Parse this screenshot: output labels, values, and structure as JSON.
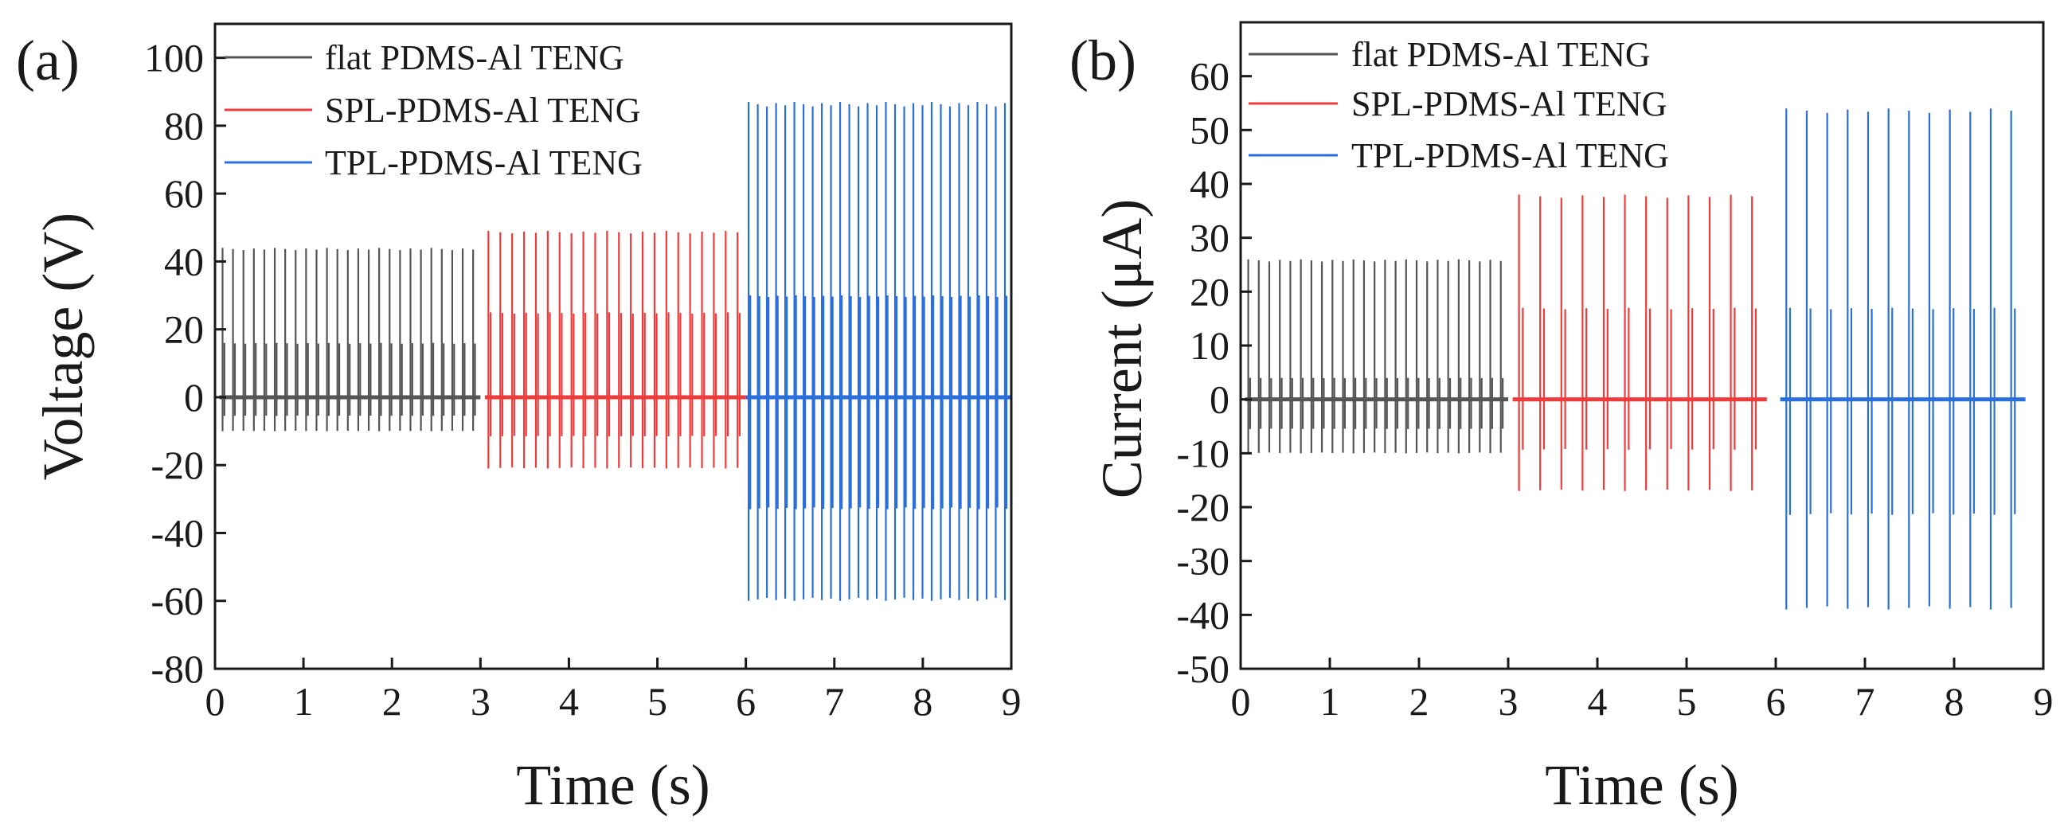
{
  "chart_data": [
    {
      "panel": "(a)",
      "type": "line",
      "xlabel": "Time (s)",
      "ylabel": "Voltage (V)",
      "xlim": [
        0,
        9
      ],
      "ylim": [
        -80,
        110
      ],
      "xticks": [
        0,
        1,
        2,
        3,
        4,
        5,
        6,
        7,
        8,
        9
      ],
      "yticks": [
        -80,
        -60,
        -40,
        -20,
        0,
        20,
        40,
        60,
        80,
        100
      ],
      "legend_position": "top-left",
      "series": [
        {
          "name": "flat PDMS-Al TENG",
          "color": "#555555",
          "t_start": 0.05,
          "t_end": 3.0,
          "pulses": 25,
          "peak_max": 44,
          "peak_mid": 16,
          "peak_min": -10
        },
        {
          "name": "SPL-PDMS-Al TENG",
          "color": "#ef3b3b",
          "t_start": 3.05,
          "t_end": 6.0,
          "pulses": 22,
          "peak_max": 49,
          "peak_mid": 25,
          "peak_min": -21
        },
        {
          "name": "TPL-PDMS-Al TENG",
          "color": "#2a6fdb",
          "t_start": 6.0,
          "t_end": 9.0,
          "pulses": 29,
          "peak_max": 87,
          "peak_mid": 30,
          "peak_min": -60
        }
      ]
    },
    {
      "panel": "(b)",
      "type": "line",
      "xlabel": "Time (s)",
      "ylabel": "Current (μA)",
      "xlim": [
        0,
        9
      ],
      "ylim": [
        -50,
        70
      ],
      "xticks": [
        0,
        1,
        2,
        3,
        4,
        5,
        6,
        7,
        8,
        9
      ],
      "yticks": [
        -50,
        -40,
        -30,
        -20,
        -10,
        0,
        10,
        20,
        30,
        40,
        50,
        60
      ],
      "legend_position": "top-left",
      "series": [
        {
          "name": "flat PDMS-Al TENG",
          "color": "#555555",
          "t_start": 0.05,
          "t_end": 3.0,
          "pulses": 25,
          "peak_max": 26,
          "peak_mid": 4,
          "peak_min": -10
        },
        {
          "name": "SPL-PDMS-Al TENG",
          "color": "#ef3b3b",
          "t_start": 3.05,
          "t_end": 5.9,
          "pulses": 12,
          "peak_max": 38,
          "peak_mid": 17,
          "peak_min": -17
        },
        {
          "name": "TPL-PDMS-Al TENG",
          "color": "#2a6fdb",
          "t_start": 6.05,
          "t_end": 8.8,
          "pulses": 12,
          "peak_max": 54,
          "peak_mid": 17,
          "peak_min": -39
        }
      ]
    }
  ]
}
